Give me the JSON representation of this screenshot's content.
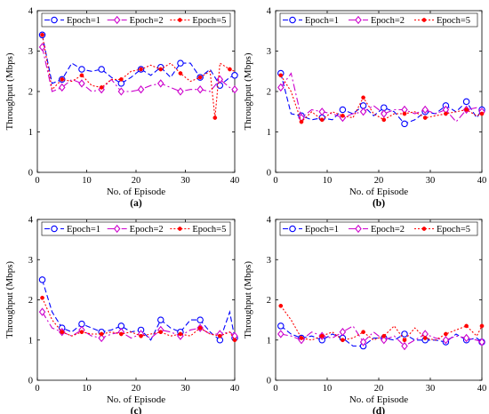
{
  "chart_data": [
    {
      "type": "line",
      "caption": "(a)",
      "xlabel": "No. of Episode",
      "ylabel": "Throughput (Mbps)",
      "xlim": [
        0,
        40
      ],
      "ylim": [
        0,
        4
      ],
      "xticks": [
        0,
        10,
        20,
        30,
        40
      ],
      "yticks": [
        0,
        1,
        2,
        3,
        4
      ],
      "legend_position": "top-inside",
      "series": [
        {
          "name": "Epoch=1",
          "color": "#0000ff",
          "marker": "circle",
          "dash": "6,3",
          "x": [
            1,
            3,
            5,
            7,
            9,
            11,
            13,
            15,
            17,
            19,
            21,
            23,
            25,
            27,
            29,
            31,
            33,
            35,
            37,
            39,
            40
          ],
          "y": [
            3.4,
            2.2,
            2.3,
            2.7,
            2.55,
            2.5,
            2.55,
            2.35,
            2.2,
            2.35,
            2.55,
            2.4,
            2.6,
            2.35,
            2.7,
            2.7,
            2.35,
            2.55,
            2.15,
            2.35,
            2.4
          ]
        },
        {
          "name": "Epoch=2",
          "color": "#cc00cc",
          "marker": "diamond",
          "dash": "8,3,2,3",
          "x": [
            1,
            3,
            5,
            7,
            9,
            11,
            13,
            15,
            17,
            19,
            21,
            23,
            25,
            27,
            29,
            31,
            33,
            35,
            37,
            39,
            40
          ],
          "y": [
            3.1,
            2.0,
            2.1,
            2.3,
            2.2,
            2.0,
            2.05,
            2.3,
            2.0,
            2.0,
            2.05,
            2.15,
            2.2,
            2.1,
            2.0,
            2.05,
            2.05,
            2.0,
            2.3,
            2.1,
            2.05
          ]
        },
        {
          "name": "Epoch=5",
          "color": "#ff0000",
          "marker": "dot",
          "dash": "2,2",
          "x": [
            1,
            3,
            5,
            7,
            9,
            11,
            13,
            15,
            17,
            19,
            21,
            23,
            25,
            27,
            29,
            31,
            33,
            35,
            36,
            37,
            39,
            40
          ],
          "y": [
            3.4,
            2.05,
            2.3,
            2.25,
            2.4,
            2.15,
            2.1,
            2.3,
            2.3,
            2.5,
            2.55,
            2.65,
            2.55,
            2.7,
            2.45,
            2.25,
            2.35,
            2.5,
            1.35,
            2.7,
            2.55,
            2.5
          ]
        }
      ]
    },
    {
      "type": "line",
      "caption": "(b)",
      "xlabel": "No. of Episode",
      "ylabel": "Throughput (Mbps)",
      "xlim": [
        0,
        40
      ],
      "ylim": [
        0,
        4
      ],
      "xticks": [
        0,
        10,
        20,
        30,
        40
      ],
      "yticks": [
        0,
        1,
        2,
        3,
        4
      ],
      "legend_position": "top-inside",
      "series": [
        {
          "name": "Epoch=1",
          "color": "#0000ff",
          "marker": "circle",
          "dash": "6,3",
          "x": [
            1,
            3,
            5,
            7,
            9,
            11,
            13,
            15,
            17,
            19,
            21,
            23,
            25,
            27,
            29,
            31,
            33,
            35,
            37,
            39,
            40
          ],
          "y": [
            2.45,
            1.45,
            1.4,
            1.3,
            1.35,
            1.3,
            1.55,
            1.45,
            1.65,
            1.4,
            1.6,
            1.5,
            1.2,
            1.3,
            1.5,
            1.45,
            1.65,
            1.5,
            1.75,
            1.35,
            1.55
          ]
        },
        {
          "name": "Epoch=2",
          "color": "#cc00cc",
          "marker": "diamond",
          "dash": "8,3,2,3",
          "x": [
            1,
            3,
            5,
            7,
            9,
            11,
            13,
            15,
            17,
            19,
            21,
            23,
            25,
            27,
            29,
            31,
            33,
            35,
            37,
            39,
            40
          ],
          "y": [
            2.1,
            2.45,
            1.35,
            1.55,
            1.5,
            1.45,
            1.35,
            1.45,
            1.5,
            1.65,
            1.45,
            1.55,
            1.55,
            1.45,
            1.55,
            1.45,
            1.55,
            1.25,
            1.55,
            1.6,
            1.5
          ]
        },
        {
          "name": "Epoch=5",
          "color": "#ff0000",
          "marker": "dot",
          "dash": "2,2",
          "x": [
            1,
            3,
            5,
            7,
            9,
            11,
            13,
            15,
            17,
            19,
            21,
            23,
            25,
            27,
            29,
            31,
            33,
            35,
            37,
            39,
            40
          ],
          "y": [
            2.4,
            2.0,
            1.25,
            1.5,
            1.3,
            1.5,
            1.4,
            1.35,
            1.85,
            1.45,
            1.3,
            1.45,
            1.45,
            1.5,
            1.35,
            1.4,
            1.45,
            1.5,
            1.55,
            1.4,
            1.45
          ]
        }
      ]
    },
    {
      "type": "line",
      "caption": "(c)",
      "xlabel": "No. of Episode",
      "ylabel": "Throughput (Mbps)",
      "xlim": [
        0,
        40
      ],
      "ylim": [
        0,
        4
      ],
      "xticks": [
        0,
        10,
        20,
        30,
        40
      ],
      "yticks": [
        0,
        1,
        2,
        3,
        4
      ],
      "legend_position": "top-inside",
      "series": [
        {
          "name": "Epoch=1",
          "color": "#0000ff",
          "marker": "circle",
          "dash": "6,3",
          "x": [
            1,
            3,
            5,
            7,
            9,
            11,
            13,
            15,
            17,
            19,
            21,
            23,
            25,
            27,
            29,
            31,
            33,
            35,
            37,
            39,
            40
          ],
          "y": [
            2.5,
            1.7,
            1.3,
            1.2,
            1.4,
            1.3,
            1.2,
            1.25,
            1.35,
            1.2,
            1.25,
            1.0,
            1.5,
            1.3,
            1.2,
            1.5,
            1.5,
            1.2,
            1.0,
            1.7,
            1.05
          ]
        },
        {
          "name": "Epoch=2",
          "color": "#cc00cc",
          "marker": "diamond",
          "dash": "8,3,2,3",
          "x": [
            1,
            3,
            5,
            7,
            9,
            11,
            13,
            15,
            17,
            19,
            21,
            23,
            25,
            27,
            29,
            31,
            33,
            35,
            37,
            39,
            40
          ],
          "y": [
            1.7,
            1.3,
            1.2,
            1.1,
            1.25,
            1.1,
            1.05,
            1.15,
            1.2,
            1.05,
            1.15,
            1.05,
            1.25,
            1.2,
            1.1,
            1.25,
            1.3,
            1.15,
            1.15,
            1.2,
            1.1
          ]
        },
        {
          "name": "Epoch=5",
          "color": "#ff0000",
          "marker": "dot",
          "dash": "2,2",
          "x": [
            1,
            3,
            5,
            7,
            9,
            11,
            13,
            15,
            17,
            19,
            21,
            23,
            25,
            27,
            29,
            31,
            33,
            35,
            37,
            39,
            40
          ],
          "y": [
            2.05,
            1.5,
            1.2,
            1.1,
            1.2,
            1.15,
            1.15,
            1.2,
            1.15,
            1.2,
            1.1,
            1.15,
            1.2,
            1.1,
            1.15,
            1.1,
            1.3,
            1.15,
            1.1,
            1.2,
            1.0
          ]
        }
      ]
    },
    {
      "type": "line",
      "caption": "(d)",
      "xlabel": "No. of Episode",
      "ylabel": "Throughput (Mbps)",
      "xlim": [
        0,
        40
      ],
      "ylim": [
        0,
        4
      ],
      "xticks": [
        0,
        10,
        20,
        30,
        40
      ],
      "yticks": [
        0,
        1,
        2,
        3,
        4
      ],
      "legend_position": "top-inside",
      "series": [
        {
          "name": "Epoch=1",
          "color": "#0000ff",
          "marker": "circle",
          "dash": "6,3",
          "x": [
            1,
            3,
            5,
            7,
            9,
            11,
            13,
            15,
            17,
            19,
            21,
            23,
            25,
            27,
            29,
            31,
            33,
            35,
            37,
            39,
            40
          ],
          "y": [
            1.35,
            1.15,
            1.05,
            1.1,
            1.0,
            1.15,
            1.05,
            0.85,
            0.85,
            1.05,
            1.05,
            1.0,
            1.15,
            1.0,
            1.0,
            1.0,
            0.95,
            1.15,
            1.0,
            1.05,
            0.95
          ]
        },
        {
          "name": "Epoch=2",
          "color": "#cc00cc",
          "marker": "diamond",
          "dash": "8,3,2,3",
          "x": [
            1,
            3,
            5,
            7,
            9,
            11,
            13,
            15,
            17,
            19,
            21,
            23,
            25,
            27,
            29,
            31,
            33,
            35,
            37,
            39,
            40
          ],
          "y": [
            1.15,
            1.1,
            1.0,
            1.2,
            1.1,
            1.05,
            1.2,
            1.35,
            0.95,
            1.2,
            1.0,
            1.1,
            0.85,
            1.0,
            1.15,
            1.05,
            1.0,
            1.1,
            1.05,
            1.0,
            0.95
          ]
        },
        {
          "name": "Epoch=5",
          "color": "#ff0000",
          "marker": "dot",
          "dash": "2,2",
          "x": [
            1,
            3,
            5,
            7,
            9,
            11,
            13,
            15,
            17,
            19,
            21,
            23,
            25,
            27,
            29,
            31,
            33,
            35,
            37,
            39,
            40
          ],
          "y": [
            1.85,
            1.5,
            1.05,
            1.0,
            1.1,
            1.2,
            1.0,
            1.05,
            1.2,
            1.0,
            1.1,
            1.35,
            1.0,
            1.3,
            1.05,
            1.0,
            1.15,
            1.25,
            1.35,
            1.1,
            1.35
          ]
        }
      ]
    }
  ]
}
